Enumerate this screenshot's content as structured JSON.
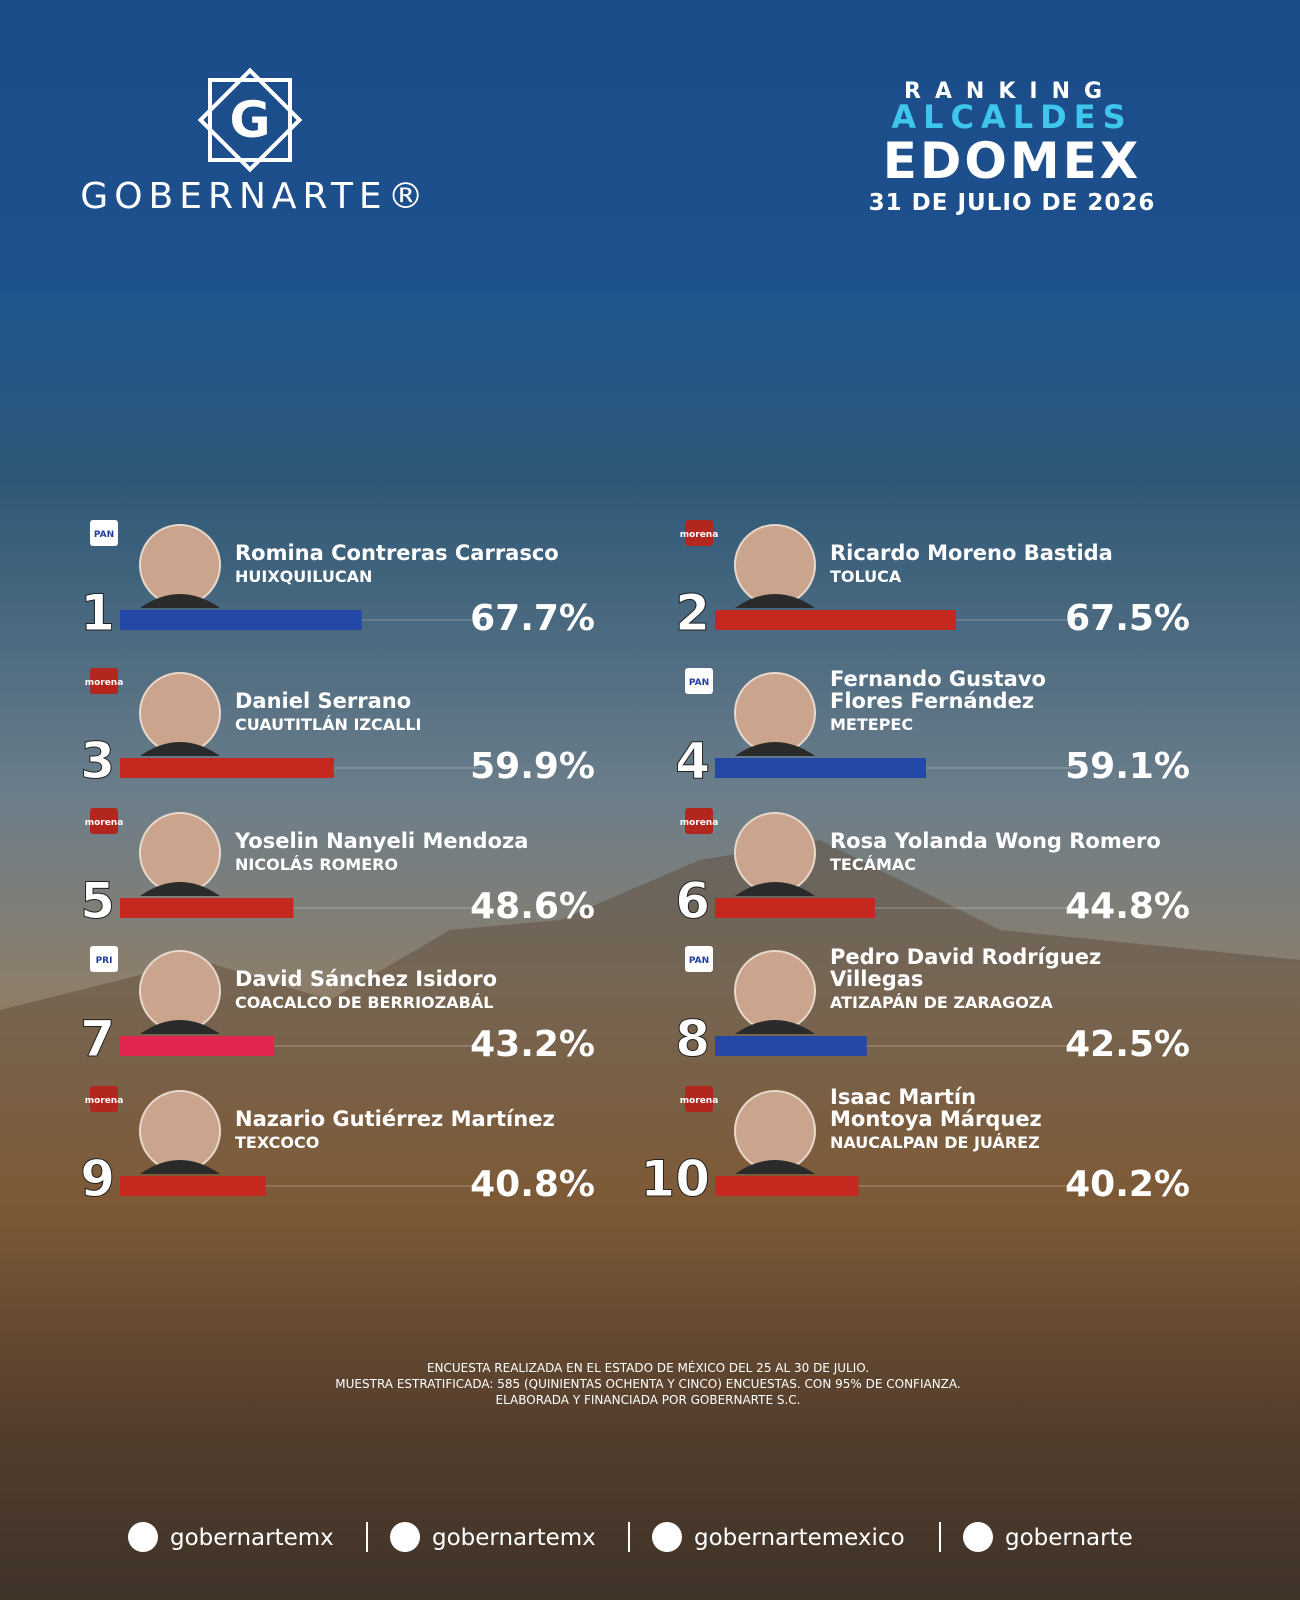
{
  "header": {
    "brand": "GOBERNARTE®",
    "ranking": "RANKING",
    "title1": "ALCALDES",
    "title2": "EDOMEX",
    "date": "31 DE JULIO DE 2026"
  },
  "candidates": [
    {
      "rank": 1,
      "party": "PAN",
      "name_lines": [
        "Romina Contreras Carrasco"
      ],
      "municipality": "HUIXQUILUCAN",
      "value": 67.7,
      "label": "67.7%",
      "color": "#2448a8"
    },
    {
      "rank": 2,
      "party": "morena",
      "name_lines": [
        "Ricardo Moreno Bastida"
      ],
      "municipality": "TOLUCA",
      "value": 67.5,
      "label": "67.5%",
      "color": "#c4281f"
    },
    {
      "rank": 3,
      "party": "morena",
      "name_lines": [
        "Daniel Serrano"
      ],
      "municipality": "CUAUTITLÁN IZCALLI",
      "value": 59.9,
      "label": "59.9%",
      "color": "#c4281f"
    },
    {
      "rank": 4,
      "party": "PAN",
      "name_lines": [
        "Fernando Gustavo",
        "Flores Fernández"
      ],
      "municipality": "METEPEC",
      "value": 59.1,
      "label": "59.1%",
      "color": "#2448a8"
    },
    {
      "rank": 5,
      "party": "morena",
      "name_lines": [
        "Yoselin Nanyeli Mendoza"
      ],
      "municipality": "NICOLÁS ROMERO",
      "value": 48.6,
      "label": "48.6%",
      "color": "#c4281f"
    },
    {
      "rank": 6,
      "party": "morena",
      "name_lines": [
        "Rosa Yolanda Wong Romero"
      ],
      "municipality": "TECÁMAC",
      "value": 44.8,
      "label": "44.8%",
      "color": "#c4281f"
    },
    {
      "rank": 7,
      "party": "PRI",
      "name_lines": [
        "David Sánchez Isidoro"
      ],
      "municipality": "COACALCO DE BERRIOZABÁL",
      "value": 43.2,
      "label": "43.2%",
      "color": "#e32650"
    },
    {
      "rank": 8,
      "party": "PAN",
      "name_lines": [
        "Pedro David Rodríguez",
        "Villegas"
      ],
      "municipality": "ATIZAPÁN DE ZARAGOZA",
      "value": 42.5,
      "label": "42.5%",
      "color": "#2448a8"
    },
    {
      "rank": 9,
      "party": "morena",
      "name_lines": [
        "Nazario Gutiérrez Martínez"
      ],
      "municipality": "TEXCOCO",
      "value": 40.8,
      "label": "40.8%",
      "color": "#c4281f"
    },
    {
      "rank": 10,
      "party": "morena",
      "name_lines": [
        "Isaac Martín",
        "Montoya Márquez"
      ],
      "municipality": "NAUCALPAN DE JUÁREZ",
      "value": 40.2,
      "label": "40.2%",
      "color": "#c4281f"
    }
  ],
  "footnote": [
    "ENCUESTA REALIZADA EN EL ESTADO DE MÉXICO DEL 25 AL 30 DE JULIO.",
    "MUESTRA ESTRATIFICADA: 585 (QUINIENTAS OCHENTA Y CINCO) ENCUESTAS. CON 95% DE CONFIANZA.",
    "ELABORADA Y FINANCIADA POR GOBERNARTE S.C."
  ],
  "social": [
    "gobernartemx",
    "gobernartemx",
    "gobernartemexico",
    "gobernarte"
  ]
}
